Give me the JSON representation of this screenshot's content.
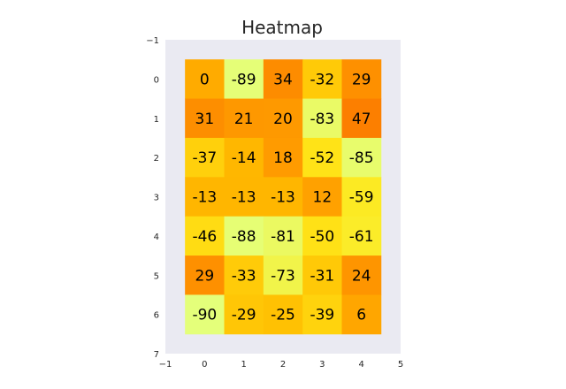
{
  "chart_data": {
    "type": "heatmap",
    "title": "Heatmap",
    "xlabel": "",
    "ylabel": "",
    "xlim": [
      -1,
      5
    ],
    "ylim": [
      7,
      -1
    ],
    "x_ticks": [
      "−1",
      "0",
      "1",
      "2",
      "3",
      "4",
      "5"
    ],
    "y_ticks": [
      "−1",
      "0",
      "1",
      "2",
      "3",
      "4",
      "5",
      "6",
      "7"
    ],
    "grid": false,
    "colormap": "Wistia",
    "plot_background": "#eaeaf2",
    "values": [
      [
        0,
        -89,
        34,
        -32,
        29
      ],
      [
        31,
        21,
        20,
        -83,
        47
      ],
      [
        -37,
        -14,
        18,
        -52,
        -85
      ],
      [
        -13,
        -13,
        -13,
        12,
        -59
      ],
      [
        -46,
        -88,
        -81,
        -50,
        -61
      ],
      [
        29,
        -33,
        -73,
        -31,
        24
      ],
      [
        -90,
        -29,
        -25,
        -39,
        6
      ]
    ],
    "cell_labels": [
      [
        "0",
        "-89",
        "34",
        "-32",
        "29"
      ],
      [
        "31",
        "21",
        "20",
        "-83",
        "47"
      ],
      [
        "-37",
        "-14",
        "18",
        "-52",
        "-85"
      ],
      [
        "-13",
        "-13",
        "-13",
        "12",
        "-59"
      ],
      [
        "-46",
        "-88",
        "-81",
        "-50",
        "-61"
      ],
      [
        "29",
        "-33",
        "-73",
        "-31",
        "24"
      ],
      [
        "-90",
        "-29",
        "-25",
        "-39",
        "6"
      ]
    ]
  }
}
